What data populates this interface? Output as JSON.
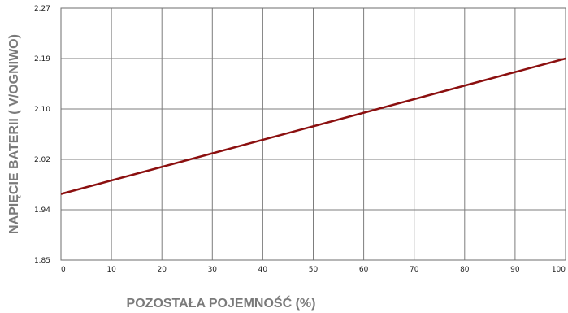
{
  "chart_data": {
    "type": "line",
    "title": "",
    "xlabel": "POZOSTAŁA POJEMNOŚĆ (%)",
    "ylabel": "NAPIĘCIE BATERII ( V/OGNIWO)",
    "x_ticks": [
      0,
      10,
      20,
      30,
      40,
      50,
      60,
      70,
      80,
      90,
      100
    ],
    "x_tick_labels": [
      "0",
      "10",
      "20",
      "30",
      "40",
      "50",
      "60",
      "70",
      "80",
      "90",
      "100"
    ],
    "y_ticks": [
      1.85,
      1.94,
      2.02,
      2.1,
      2.19,
      2.27
    ],
    "y_tick_labels": [
      "1.85",
      "1.94",
      "2.02",
      "2.10",
      "2.19",
      "2.27"
    ],
    "xlim": [
      0,
      100
    ],
    "ylim": [
      1.85,
      2.27
    ],
    "grid": true,
    "series": [
      {
        "color": "#8b0f0f",
        "x": [
          0,
          100
        ],
        "y": [
          1.965,
          2.19
        ]
      }
    ]
  }
}
